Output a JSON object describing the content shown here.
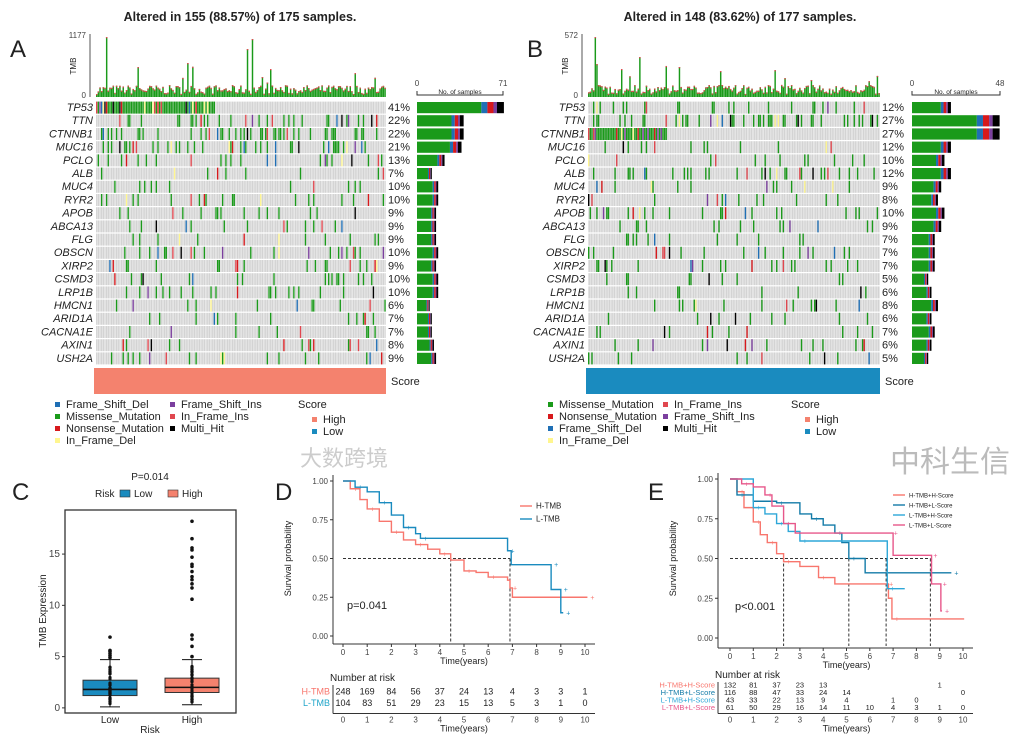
{
  "mutation_colors": {
    "Missense_Mutation": "#1A9A1A",
    "Nonsense_Mutation": "#D7191C",
    "Frame_Shift_Del": "#1F6FB5",
    "Frame_Shift_Ins": "#7B3F9E",
    "In_Frame_Ins": "#E0474F",
    "In_Frame_Del": "#FFF68F",
    "Multi_Hit": "#000000"
  },
  "chart_data": [
    {
      "panel": "A",
      "type": "heatmap",
      "title": "Altered in 155 (88.57%) of 175 samples.",
      "samples": 175,
      "tmb_axis": {
        "label": "TMB",
        "max": 1177,
        "min": 0,
        "max_label": "1177",
        "min_label": "0"
      },
      "side_axis": {
        "label": "No. of samples",
        "min": 0,
        "max": 71,
        "min_label": "0",
        "max_label": "71"
      },
      "genes": [
        "TP53",
        "TTN",
        "CTNNB1",
        "MUC16",
        "PCLO",
        "ALB",
        "MUC4",
        "RYR2",
        "APOB",
        "ABCA13",
        "FLG",
        "OBSCN",
        "XIRP2",
        "CSMD3",
        "LRP1B",
        "HMCN1",
        "ARID1A",
        "CACNA1E",
        "AXIN1",
        "USH2A"
      ],
      "percent": [
        41,
        22,
        22,
        21,
        13,
        7,
        10,
        10,
        9,
        9,
        9,
        10,
        9,
        10,
        10,
        6,
        7,
        7,
        8,
        9
      ],
      "percent_labels": [
        "41%",
        "22%",
        "22%",
        "21%",
        "13%",
        "7%",
        "10%",
        "10%",
        "9%",
        "9%",
        "9%",
        "10%",
        "9%",
        "10%",
        "10%",
        "6%",
        "7%",
        "7%",
        "8%",
        "9%"
      ],
      "score_bar": {
        "label": "Score",
        "value": "High",
        "color": "#F4826E"
      },
      "legend_mutations": [
        "Frame_Shift_Del",
        "Missense_Mutation",
        "Nonsense_Mutation",
        "In_Frame_Del",
        "Frame_Shift_Ins",
        "In_Frame_Ins",
        "Multi_Hit"
      ],
      "legend_score": {
        "title": "Score",
        "items": [
          {
            "label": "High",
            "color": "#F4826E"
          },
          {
            "label": "Low",
            "color": "#1A8BBF"
          }
        ]
      }
    },
    {
      "panel": "B",
      "type": "heatmap",
      "title": "Altered in 148 (83.62%) of 177 samples.",
      "samples": 177,
      "tmb_axis": {
        "label": "TMB",
        "max": 572,
        "min": 0,
        "max_label": "572",
        "min_label": "0"
      },
      "side_axis": {
        "label": "No. of samples",
        "min": 0,
        "max": 48,
        "min_label": "0",
        "max_label": "48"
      },
      "genes": [
        "TP53",
        "TTN",
        "CTNNB1",
        "MUC16",
        "PCLO",
        "ALB",
        "MUC4",
        "RYR2",
        "APOB",
        "ABCA13",
        "FLG",
        "OBSCN",
        "XIRP2",
        "CSMD3",
        "LRP1B",
        "HMCN1",
        "ARID1A",
        "CACNA1E",
        "AXIN1",
        "USH2A"
      ],
      "percent": [
        12,
        27,
        27,
        12,
        10,
        12,
        9,
        8,
        10,
        9,
        7,
        7,
        7,
        5,
        6,
        8,
        6,
        7,
        6,
        5
      ],
      "percent_labels": [
        "12%",
        "27%",
        "27%",
        "12%",
        "10%",
        "12%",
        "9%",
        "8%",
        "10%",
        "9%",
        "7%",
        "7%",
        "7%",
        "5%",
        "6%",
        "8%",
        "6%",
        "7%",
        "6%",
        "5%"
      ],
      "score_bar": {
        "label": "Score",
        "value": "Low",
        "color": "#1A8BBF"
      },
      "legend_mutations": [
        "Missense_Mutation",
        "Nonsense_Mutation",
        "Frame_Shift_Del",
        "In_Frame_Del",
        "In_Frame_Ins",
        "Frame_Shift_Ins",
        "Multi_Hit"
      ],
      "legend_score": {
        "title": "Score",
        "items": [
          {
            "label": "High",
            "color": "#F4826E"
          },
          {
            "label": "Low",
            "color": "#1A8BBF"
          }
        ]
      }
    },
    {
      "panel": "C",
      "type": "box",
      "title": "P=0.014",
      "legend_title": "Risk",
      "xlabel": "Risk",
      "ylabel": "TMB Expression",
      "ylim": [
        -0.5,
        19.3
      ],
      "yticks": [
        0,
        5,
        10,
        15
      ],
      "groups": [
        {
          "name": "Low",
          "color": "#1A8BBF",
          "q1": 1.2,
          "median": 1.8,
          "q3": 2.7,
          "whisker_low": 0.1,
          "whisker_high": 4.7,
          "outliers": [
            4.9,
            5.1,
            5.3,
            5.5,
            5.6,
            6.9
          ]
        },
        {
          "name": "High",
          "color": "#F4826E",
          "q1": 1.5,
          "median": 2.0,
          "q3": 2.9,
          "whisker_low": 0.3,
          "whisker_high": 4.7,
          "outliers": [
            5.0,
            6.0,
            6.7,
            7.1,
            10.6,
            11.7,
            12.1,
            12.5,
            12.8,
            13.3,
            13.8,
            14.0,
            14.7,
            15.4,
            15.6,
            16.5,
            18.2
          ]
        }
      ]
    },
    {
      "panel": "D",
      "type": "line",
      "p_value": "p=0.041",
      "xlabel": "Time(years)",
      "ylabel": "Survival probability",
      "xlim": [
        0,
        10
      ],
      "ylim": [
        0,
        1
      ],
      "xticks": [
        0,
        1,
        2,
        3,
        4,
        5,
        6,
        7,
        8,
        9,
        10
      ],
      "yticks": [
        "0.00",
        "0.25",
        "0.50",
        "0.75",
        "1.00"
      ],
      "medians": [
        4.45,
        6.9
      ],
      "series": [
        {
          "name": "H-TMB",
          "color": "#F8766D",
          "points": [
            [
              0,
              1
            ],
            [
              0.3,
              0.95
            ],
            [
              0.7,
              0.88
            ],
            [
              1,
              0.82
            ],
            [
              1.5,
              0.74
            ],
            [
              2,
              0.67
            ],
            [
              2.5,
              0.62
            ],
            [
              3,
              0.59
            ],
            [
              3.5,
              0.56
            ],
            [
              4,
              0.53
            ],
            [
              4.45,
              0.49
            ],
            [
              5,
              0.42
            ],
            [
              5.5,
              0.41
            ],
            [
              6,
              0.38
            ],
            [
              6.8,
              0.36
            ],
            [
              6.9,
              0.31
            ],
            [
              7,
              0.25
            ],
            [
              10.1,
              0.25
            ]
          ]
        },
        {
          "name": "L-TMB",
          "color": "#1A8BBF",
          "points": [
            [
              0,
              1
            ],
            [
              0.5,
              0.96
            ],
            [
              1,
              0.93
            ],
            [
              1.5,
              0.86
            ],
            [
              2,
              0.78
            ],
            [
              2.5,
              0.7
            ],
            [
              3,
              0.66
            ],
            [
              3.2,
              0.63
            ],
            [
              6.7,
              0.63
            ],
            [
              6.8,
              0.55
            ],
            [
              6.95,
              0.46
            ],
            [
              8.6,
              0.46
            ],
            [
              8.6,
              0.3
            ],
            [
              9,
              0.3
            ],
            [
              9,
              0.15
            ],
            [
              9.1,
              0.15
            ]
          ]
        }
      ],
      "risk_table": {
        "title": "Number at risk",
        "rows": [
          {
            "name": "H-TMB",
            "color": "#F8766D",
            "values": [
              "248",
              "169",
              "84",
              "56",
              "37",
              "24",
              "13",
              "4",
              "3",
              "3",
              "1"
            ]
          },
          {
            "name": "L-TMB",
            "color": "#1FA5C9",
            "values": [
              "104",
              "83",
              "51",
              "29",
              "23",
              "15",
              "13",
              "5",
              "3",
              "1",
              "0"
            ]
          }
        ]
      }
    },
    {
      "panel": "E",
      "type": "line",
      "p_value": "p<0.001",
      "xlabel": "Time(years)",
      "ylabel": "Survival probability",
      "xlim": [
        0,
        10
      ],
      "ylim": [
        0,
        1
      ],
      "xticks": [
        0,
        1,
        2,
        3,
        4,
        5,
        6,
        7,
        8,
        9,
        10
      ],
      "yticks": [
        "0.00",
        "0.25",
        "0.50",
        "0.75",
        "1.00"
      ],
      "medians": [
        2.3,
        5.1,
        6.7,
        8.6
      ],
      "series": [
        {
          "name": "H-TMB+H-Score",
          "color": "#F8766D",
          "points": [
            [
              0,
              1
            ],
            [
              0.3,
              0.92
            ],
            [
              0.6,
              0.82
            ],
            [
              1,
              0.73
            ],
            [
              1.3,
              0.65
            ],
            [
              1.6,
              0.6
            ],
            [
              2,
              0.53
            ],
            [
              2.3,
              0.48
            ],
            [
              3,
              0.45
            ],
            [
              3.8,
              0.38
            ],
            [
              4.5,
              0.34
            ],
            [
              6.7,
              0.34
            ],
            [
              6.8,
              0.25
            ],
            [
              6.95,
              0.12
            ],
            [
              10.05,
              0.12
            ]
          ]
        },
        {
          "name": "H-TMB+L-Score",
          "color": "#137BA8",
          "points": [
            [
              0,
              1
            ],
            [
              0.3,
              0.9
            ],
            [
              1,
              0.86
            ],
            [
              2,
              0.85
            ],
            [
              3,
              0.78
            ],
            [
              3.5,
              0.75
            ],
            [
              4,
              0.71
            ],
            [
              4.5,
              0.66
            ],
            [
              4.8,
              0.6
            ],
            [
              5.1,
              0.5
            ],
            [
              5.8,
              0.41
            ],
            [
              9.5,
              0.41
            ]
          ]
        },
        {
          "name": "L-TMB+H-Score",
          "color": "#2EA7D8",
          "points": [
            [
              0,
              1
            ],
            [
              1,
              0.82
            ],
            [
              1.5,
              0.78
            ],
            [
              2,
              0.72
            ],
            [
              2.5,
              0.67
            ],
            [
              3,
              0.61
            ],
            [
              6.7,
              0.61
            ],
            [
              6.75,
              0.31
            ],
            [
              7.5,
              0.31
            ]
          ]
        },
        {
          "name": "L-TMB+L-Score",
          "color": "#E7578A",
          "points": [
            [
              0,
              1
            ],
            [
              0.5,
              0.97
            ],
            [
              1,
              0.95
            ],
            [
              1.5,
              0.9
            ],
            [
              1.8,
              0.83
            ],
            [
              2.3,
              0.72
            ],
            [
              2.8,
              0.66
            ],
            [
              6.9,
              0.66
            ],
            [
              7,
              0.52
            ],
            [
              8.6,
              0.52
            ],
            [
              8.65,
              0.34
            ],
            [
              9,
              0.34
            ],
            [
              9.05,
              0.17
            ],
            [
              9.1,
              0.17
            ]
          ]
        }
      ],
      "risk_table": {
        "title": "Number at risk",
        "rows": [
          {
            "name": "H-TMB+H-Score",
            "color": "#F8766D",
            "values": [
              "132",
              "81",
              "37",
              "23",
              "13",
              "",
              "",
              "",
              "",
              "1",
              ""
            ]
          },
          {
            "name": "H-TMB+L-Score",
            "color": "#137BA8",
            "values": [
              "116",
              "88",
              "47",
              "33",
              "24",
              "14",
              "",
              "",
              "",
              "",
              "0"
            ]
          },
          {
            "name": "L-TMB+H-Score",
            "color": "#2EA7D8",
            "values": [
              "43",
              "33",
              "22",
              "13",
              "9",
              "4",
              "",
              "1",
              "0",
              "",
              ""
            ]
          },
          {
            "name": "L-TMB+L-Score",
            "color": "#E7578A",
            "values": [
              "61",
              "50",
              "29",
              "16",
              "14",
              "11",
              "10",
              "4",
              "3",
              "1",
              "0"
            ]
          }
        ]
      }
    }
  ],
  "panel_letters": [
    "A",
    "B",
    "C",
    "D",
    "E"
  ],
  "watermarks": [
    "中科生信",
    "大数跨境"
  ]
}
